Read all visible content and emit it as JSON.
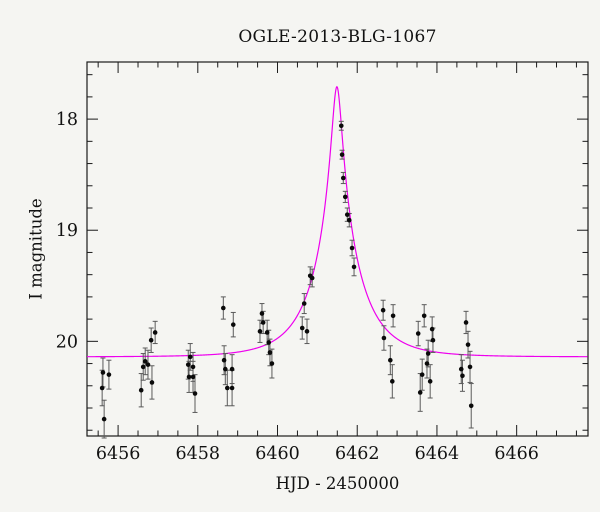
{
  "chart_data": {
    "type": "scatter",
    "title": "OGLE-2013-BLG-1067",
    "xlabel": "HJD - 2450000",
    "ylabel": "I magnitude",
    "xlim": [
      6455.22,
      6467.79
    ],
    "ylim": [
      17.486,
      20.852
    ],
    "y_axis_inverted": true,
    "grid": false,
    "x_ticks_major": [
      6456,
      6458,
      6460,
      6462,
      6464,
      6466
    ],
    "x_tick_minor_step": 0.5,
    "y_ticks_major": [
      18,
      19,
      20
    ],
    "y_tick_minor_step": 0.2,
    "colors": {
      "marker": "#0a0a0a",
      "error_bar": "#5a5a5a",
      "model_curve": "#ee00ee",
      "axis": "#1a1a1a"
    },
    "series": [
      {
        "marker": "filled-circle",
        "points_format": [
          "hjd_minus_2450000",
          "I_mag",
          "mag_error"
        ],
        "points": [
          [
            6455.6,
            20.42,
            0.16
          ],
          [
            6455.62,
            20.28,
            0.13
          ],
          [
            6455.65,
            20.7,
            0.17
          ],
          [
            6455.77,
            20.3,
            0.13
          ],
          [
            6456.58,
            20.44,
            0.15
          ],
          [
            6456.63,
            20.23,
            0.12
          ],
          [
            6456.68,
            20.18,
            0.12
          ],
          [
            6456.75,
            20.21,
            0.13
          ],
          [
            6456.83,
            19.99,
            0.11
          ],
          [
            6456.85,
            20.37,
            0.15
          ],
          [
            6456.93,
            19.92,
            0.1
          ],
          [
            6457.76,
            20.21,
            0.13
          ],
          [
            6457.78,
            20.32,
            0.14
          ],
          [
            6457.81,
            20.14,
            0.12
          ],
          [
            6457.88,
            20.23,
            0.13
          ],
          [
            6457.88,
            20.32,
            0.14
          ],
          [
            6457.93,
            20.47,
            0.17
          ],
          [
            6458.64,
            19.7,
            0.1
          ],
          [
            6458.66,
            20.17,
            0.13
          ],
          [
            6458.69,
            20.25,
            0.14
          ],
          [
            6458.74,
            20.42,
            0.16
          ],
          [
            6458.86,
            20.25,
            0.13
          ],
          [
            6458.86,
            20.42,
            0.16
          ],
          [
            6458.89,
            19.85,
            0.11
          ],
          [
            6459.56,
            19.91,
            0.1
          ],
          [
            6459.61,
            19.75,
            0.09
          ],
          [
            6459.64,
            19.83,
            0.1
          ],
          [
            6459.74,
            19.92,
            0.11
          ],
          [
            6459.78,
            20.01,
            0.11
          ],
          [
            6459.81,
            20.1,
            0.12
          ],
          [
            6459.86,
            20.2,
            0.13
          ],
          [
            6460.62,
            19.88,
            0.1
          ],
          [
            6460.67,
            19.66,
            0.09
          ],
          [
            6460.74,
            19.91,
            0.11
          ],
          [
            6460.82,
            19.41,
            0.08
          ],
          [
            6460.87,
            19.43,
            0.08
          ],
          [
            6461.6,
            18.06,
            0.04
          ],
          [
            6461.62,
            18.32,
            0.04
          ],
          [
            6461.65,
            18.53,
            0.05
          ],
          [
            6461.7,
            18.7,
            0.05
          ],
          [
            6461.75,
            18.86,
            0.06
          ],
          [
            6461.8,
            18.91,
            0.06
          ],
          [
            6461.87,
            19.16,
            0.07
          ],
          [
            6461.92,
            19.33,
            0.08
          ],
          [
            6462.65,
            19.72,
            0.09
          ],
          [
            6462.67,
            19.97,
            0.11
          ],
          [
            6462.83,
            20.17,
            0.13
          ],
          [
            6462.88,
            20.36,
            0.15
          ],
          [
            6462.9,
            19.77,
            0.1
          ],
          [
            6463.53,
            19.93,
            0.11
          ],
          [
            6463.58,
            20.46,
            0.17
          ],
          [
            6463.63,
            20.3,
            0.14
          ],
          [
            6463.68,
            19.77,
            0.1
          ],
          [
            6463.75,
            20.2,
            0.13
          ],
          [
            6463.78,
            20.11,
            0.12
          ],
          [
            6463.83,
            20.36,
            0.15
          ],
          [
            6463.88,
            19.89,
            0.11
          ],
          [
            6463.9,
            19.99,
            0.11
          ],
          [
            6464.61,
            20.25,
            0.13
          ],
          [
            6464.64,
            20.31,
            0.14
          ],
          [
            6464.73,
            19.83,
            0.1
          ],
          [
            6464.78,
            20.03,
            0.12
          ],
          [
            6464.83,
            20.23,
            0.14
          ],
          [
            6464.86,
            20.58,
            0.2
          ]
        ]
      }
    ],
    "model_curve": {
      "type": "paczynski_point_lens",
      "t0": 6461.49,
      "tE_days": 1.09,
      "u0": 0.107,
      "baseline_I_mag": 20.14,
      "peak_I_mag": 17.71
    }
  }
}
